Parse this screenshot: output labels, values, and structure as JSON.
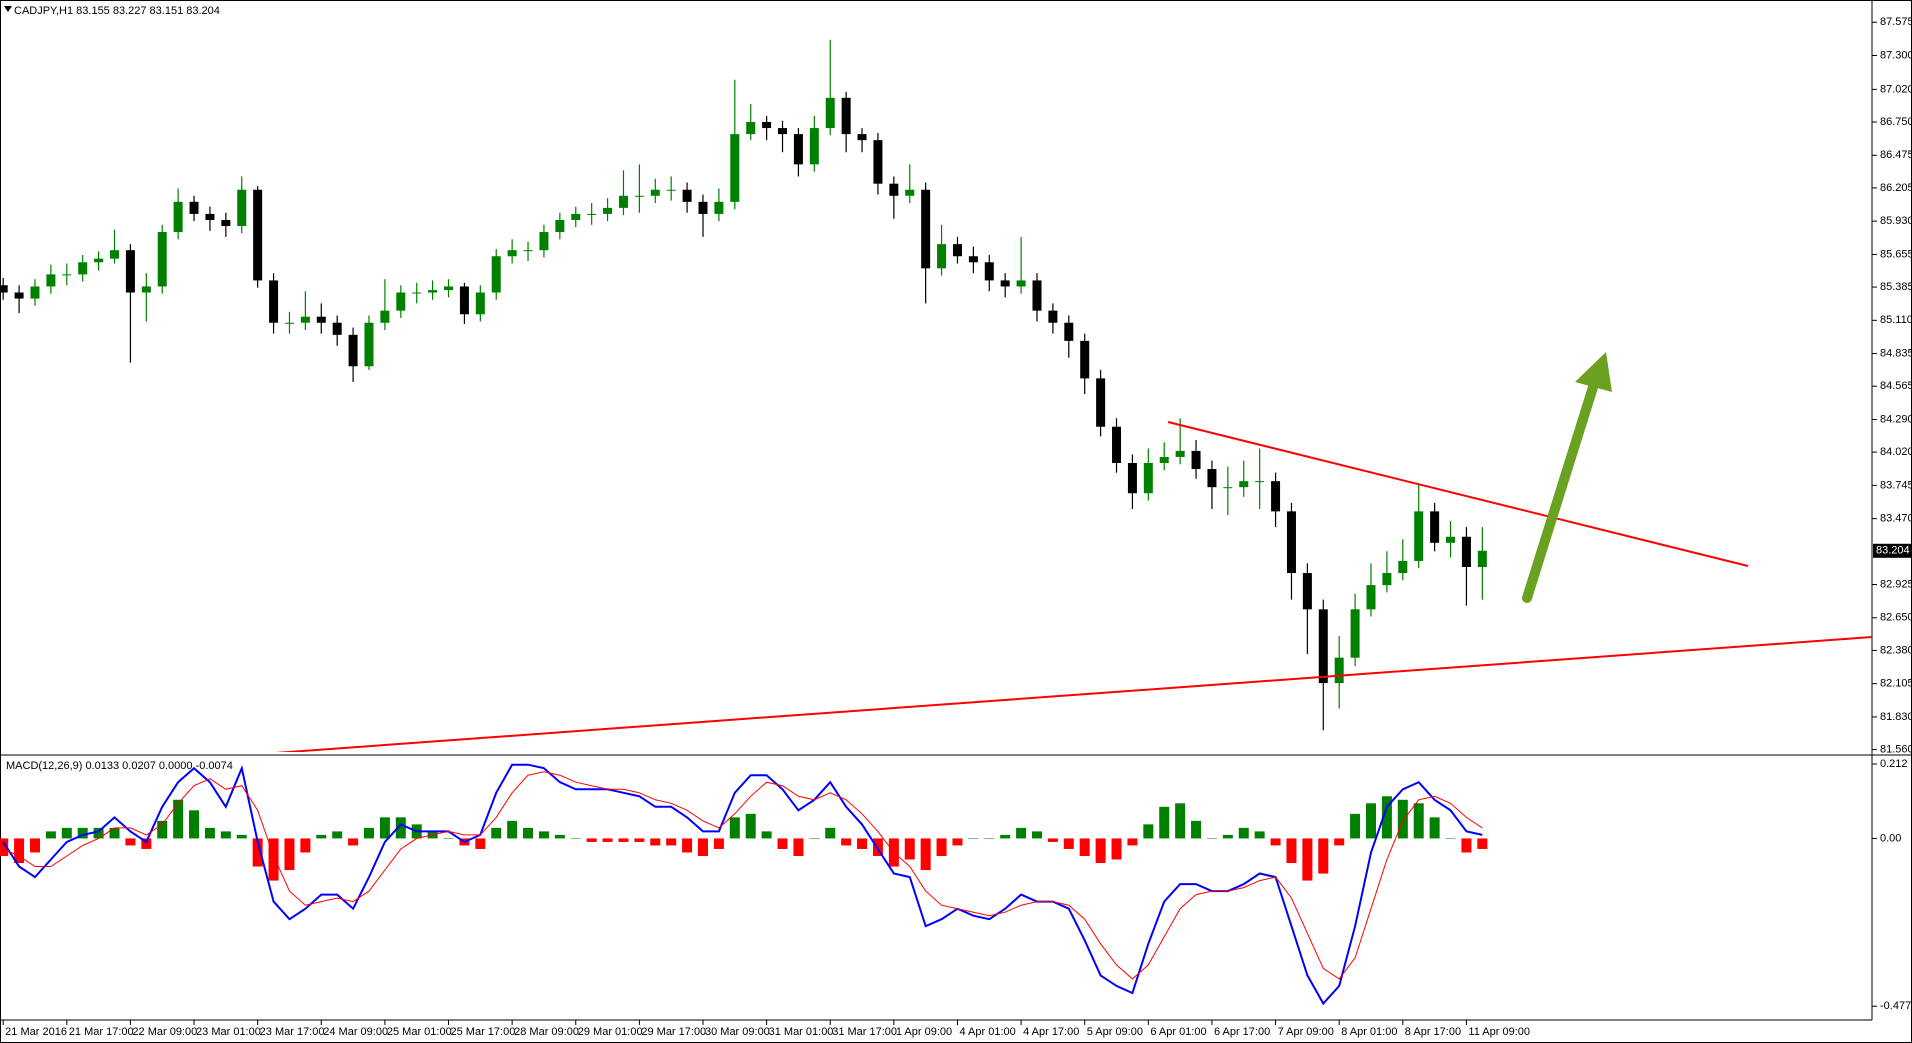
{
  "chart_data": [
    {
      "type": "candlestick",
      "title": "CADJPY,H1  83.155 83.227 83.151 83.204",
      "up_color": "#008000",
      "down_color": "#000000",
      "xlim": [
        -0.2,
        117.5
      ],
      "ylim": [
        81.54,
        87.726
      ],
      "yticks": [
        87.575,
        {
          "value": 87.3,
          "label": "87.300"
        },
        {
          "value": 87.02,
          "label": "87.020"
        },
        {
          "value": 86.75,
          "label": "86.750"
        },
        86.475,
        86.205,
        {
          "value": 85.93,
          "label": "85.930"
        },
        85.655,
        85.385,
        {
          "value": 85.11,
          "label": "85.110"
        },
        84.835,
        84.565,
        {
          "value": 84.29,
          "label": "84.290"
        },
        {
          "value": 84.02,
          "label": "84.020"
        },
        83.745,
        {
          "value": 83.47,
          "label": "83.470"
        },
        82.925,
        {
          "value": 82.65,
          "label": "82.650"
        },
        {
          "value": 82.38,
          "label": "82.380"
        },
        82.105,
        {
          "value": 81.83,
          "label": "81.830"
        },
        {
          "value": 81.56,
          "label": "81.560"
        }
      ],
      "last_price": 83.204,
      "candles": {
        "open": [
          85.4,
          85.34,
          85.29,
          85.39,
          85.49,
          85.49,
          85.59,
          85.62,
          85.69,
          85.34,
          85.39,
          85.84,
          86.09,
          85.99,
          85.94,
          85.89,
          86.19,
          85.44,
          85.09,
          85.09,
          85.14,
          85.09,
          84.99,
          84.73,
          85.09,
          85.19,
          85.34,
          85.34,
          85.36,
          85.39,
          85.16,
          85.34,
          85.64,
          85.69,
          85.69,
          85.84,
          85.94,
          85.99,
          85.99,
          86.04,
          86.14,
          86.14,
          86.19,
          86.19,
          86.09,
          85.99,
          86.09,
          86.65,
          86.75,
          86.7,
          86.65,
          86.4,
          86.7,
          86.95,
          86.65,
          86.6,
          86.24,
          86.14,
          86.19,
          85.54,
          85.74,
          85.64,
          85.59,
          85.44,
          85.39,
          85.44,
          85.19,
          85.09,
          84.94,
          84.63,
          84.23,
          83.93,
          83.68,
          83.93,
          83.98,
          84.03,
          83.88,
          83.73,
          83.73,
          83.78,
          83.78,
          83.53,
          83.02,
          82.72,
          82.11,
          82.32,
          82.72,
          82.92,
          83.02,
          83.12,
          83.53,
          83.27,
          83.32,
          83.07
        ],
        "high": [
          85.46,
          85.4,
          85.45,
          85.57,
          85.58,
          85.65,
          85.68,
          85.86,
          85.74,
          85.5,
          85.9,
          86.2,
          86.14,
          86.05,
          86.0,
          86.3,
          86.22,
          85.5,
          85.18,
          85.35,
          85.25,
          85.15,
          85.05,
          85.15,
          85.45,
          85.4,
          85.42,
          85.44,
          85.45,
          85.42,
          85.4,
          85.7,
          85.78,
          85.76,
          85.9,
          86.0,
          86.05,
          86.08,
          86.12,
          86.35,
          86.4,
          86.28,
          86.3,
          86.25,
          86.15,
          86.2,
          87.1,
          86.9,
          86.8,
          86.76,
          86.7,
          86.8,
          87.43,
          87.0,
          86.7,
          86.66,
          86.3,
          86.4,
          86.25,
          85.9,
          85.8,
          85.72,
          85.65,
          85.5,
          85.8,
          85.5,
          85.25,
          85.15,
          85.0,
          84.7,
          84.3,
          84.0,
          84.05,
          84.1,
          84.3,
          84.12,
          83.95,
          83.9,
          83.95,
          84.05,
          83.85,
          83.6,
          83.1,
          82.8,
          82.5,
          82.85,
          83.1,
          83.2,
          83.3,
          83.75,
          83.6,
          83.45,
          83.4,
          83.4
        ],
        "low": [
          85.28,
          85.17,
          85.23,
          85.33,
          85.4,
          85.43,
          85.52,
          85.58,
          84.76,
          85.1,
          85.33,
          85.78,
          85.93,
          85.85,
          85.8,
          85.83,
          85.38,
          85.0,
          85.0,
          85.03,
          85.0,
          84.9,
          84.6,
          84.7,
          85.03,
          85.13,
          85.25,
          85.28,
          85.3,
          85.08,
          85.1,
          85.28,
          85.58,
          85.6,
          85.63,
          85.78,
          85.88,
          85.9,
          85.93,
          85.98,
          86.0,
          86.08,
          86.1,
          86.0,
          85.8,
          85.93,
          86.03,
          86.6,
          86.6,
          86.5,
          86.3,
          86.34,
          86.64,
          86.5,
          86.5,
          86.15,
          85.95,
          86.08,
          85.25,
          85.48,
          85.58,
          85.5,
          85.35,
          85.3,
          85.33,
          85.1,
          85.0,
          84.8,
          84.5,
          84.15,
          83.85,
          83.55,
          83.62,
          83.87,
          83.92,
          83.8,
          83.55,
          83.5,
          83.65,
          83.55,
          83.4,
          82.8,
          82.35,
          81.72,
          81.9,
          82.25,
          82.66,
          82.86,
          82.96,
          83.06,
          83.2,
          83.15,
          82.75,
          82.8
        ],
        "close": [
          85.34,
          85.29,
          85.39,
          85.49,
          85.49,
          85.59,
          85.62,
          85.69,
          85.34,
          85.39,
          85.84,
          86.09,
          85.99,
          85.94,
          85.89,
          86.19,
          85.44,
          85.09,
          85.09,
          85.14,
          85.09,
          84.99,
          84.73,
          85.09,
          85.19,
          85.34,
          85.34,
          85.36,
          85.39,
          85.16,
          85.34,
          85.64,
          85.69,
          85.69,
          85.84,
          85.94,
          85.99,
          85.99,
          86.04,
          86.14,
          86.14,
          86.19,
          86.19,
          86.09,
          85.99,
          86.09,
          86.65,
          86.75,
          86.7,
          86.65,
          86.4,
          86.7,
          86.95,
          86.65,
          86.6,
          86.24,
          86.14,
          86.19,
          85.54,
          85.74,
          85.64,
          85.59,
          85.44,
          85.39,
          85.44,
          85.19,
          85.09,
          84.94,
          84.63,
          84.23,
          83.93,
          83.68,
          83.93,
          83.98,
          84.03,
          83.88,
          83.73,
          83.73,
          83.78,
          83.78,
          83.53,
          83.02,
          82.72,
          82.11,
          82.32,
          82.72,
          82.92,
          83.02,
          83.12,
          83.53,
          83.27,
          83.32,
          83.07,
          83.204
        ]
      }
    },
    {
      "type": "macd",
      "title": "MACD(12,26,9) 0.0133 0.0207 0.0000 -0.0074",
      "xlim": [
        -0.2,
        117.5
      ],
      "ylim": [
        -0.517,
        0.229
      ],
      "yticks": [
        0.212,
        {
          "value": 0,
          "label": "0.00"
        },
        -0.4778
      ],
      "xticks": [
        {
          "value": 0,
          "label": "21 Mar 2016"
        },
        {
          "value": 4,
          "label": "21 Mar 17:00"
        },
        {
          "value": 8,
          "label": "22 Mar 09:00"
        },
        {
          "value": 12,
          "label": "23 Mar 01:00"
        },
        {
          "value": 16,
          "label": "23 Mar 17:00"
        },
        {
          "value": 20,
          "label": "24 Mar 09:00"
        },
        {
          "value": 24,
          "label": "25 Mar 01:00"
        },
        {
          "value": 28,
          "label": "25 Mar 17:00"
        },
        {
          "value": 32,
          "label": "28 Mar 09:00"
        },
        {
          "value": 36,
          "label": "29 Mar 01:00"
        },
        {
          "value": 40,
          "label": "29 Mar 17:00"
        },
        {
          "value": 44,
          "label": "30 Mar 09:00"
        },
        {
          "value": 48,
          "label": "31 Mar 01:00"
        },
        {
          "value": 52,
          "label": "31 Mar 17:00"
        },
        {
          "value": 56,
          "label": "1 Apr 09:00"
        },
        {
          "value": 60,
          "label": "4 Apr 01:00"
        },
        {
          "value": 64,
          "label": "4 Apr 17:00"
        },
        {
          "value": 68,
          "label": "5 Apr 09:00"
        },
        {
          "value": 72,
          "label": "6 Apr 01:00"
        },
        {
          "value": 76,
          "label": "6 Apr 17:00"
        },
        {
          "value": 80,
          "label": "7 Apr 09:00"
        },
        {
          "value": 84,
          "label": "8 Apr 01:00"
        },
        {
          "value": 88,
          "label": "8 Apr 17:00"
        },
        {
          "value": 92,
          "label": "11 Apr 09:00"
        }
      ],
      "histogram": {
        "up_color": "#008000",
        "down_color": "#ff0000",
        "values": [
          -0.05,
          -0.07,
          -0.04,
          0.02,
          0.03,
          0.03,
          0.03,
          0.03,
          -0.02,
          -0.03,
          0.05,
          0.11,
          0.08,
          0.03,
          0.02,
          0.01,
          -0.08,
          -0.12,
          -0.09,
          -0.04,
          0.01,
          0.02,
          -0.02,
          0.03,
          0.06,
          0.06,
          0.04,
          0.02,
          0.0,
          -0.02,
          -0.03,
          0.03,
          0.05,
          0.03,
          0.02,
          0.01,
          0.0,
          -0.01,
          -0.01,
          -0.01,
          -0.01,
          -0.02,
          -0.02,
          -0.04,
          -0.05,
          -0.03,
          0.06,
          0.07,
          0.02,
          -0.03,
          -0.05,
          0.0,
          0.03,
          -0.02,
          -0.03,
          -0.05,
          -0.08,
          -0.06,
          -0.09,
          -0.05,
          -0.02,
          0.0,
          0.0,
          0.01,
          0.03,
          0.02,
          -0.01,
          -0.03,
          -0.05,
          -0.07,
          -0.06,
          -0.02,
          0.04,
          0.09,
          0.1,
          0.05,
          0.0,
          0.01,
          0.03,
          0.02,
          -0.02,
          -0.07,
          -0.12,
          -0.1,
          -0.02,
          0.07,
          0.1,
          0.12,
          0.11,
          0.1,
          0.06,
          0.0,
          -0.04,
          -0.03
        ]
      },
      "series": [
        {
          "color": "#0000ff",
          "values": [
            -0.01,
            -0.08,
            -0.11,
            -0.06,
            -0.01,
            0.01,
            0.02,
            0.06,
            0.02,
            -0.01,
            0.09,
            0.16,
            0.2,
            0.16,
            0.09,
            0.2,
            -0.01,
            -0.18,
            -0.23,
            -0.2,
            -0.16,
            -0.16,
            -0.2,
            -0.11,
            -0.01,
            0.04,
            0.02,
            0.02,
            0.02,
            -0.01,
            0.01,
            0.13,
            0.21,
            0.21,
            0.2,
            0.16,
            0.14,
            0.14,
            0.14,
            0.13,
            0.12,
            0.09,
            0.09,
            0.06,
            0.02,
            0.02,
            0.13,
            0.18,
            0.18,
            0.14,
            0.08,
            0.11,
            0.16,
            0.09,
            0.04,
            -0.03,
            -0.1,
            -0.11,
            -0.25,
            -0.23,
            -0.2,
            -0.22,
            -0.23,
            -0.2,
            -0.16,
            -0.18,
            -0.18,
            -0.2,
            -0.29,
            -0.39,
            -0.42,
            -0.44,
            -0.3,
            -0.18,
            -0.13,
            -0.13,
            -0.15,
            -0.15,
            -0.13,
            -0.1,
            -0.11,
            -0.25,
            -0.39,
            -0.47,
            -0.42,
            -0.25,
            -0.04,
            0.09,
            0.14,
            0.16,
            0.11,
            0.08,
            0.02,
            0.01
          ]
        },
        {
          "color": "#ff0000",
          "values": [
            -0.03,
            -0.05,
            -0.08,
            -0.08,
            -0.05,
            -0.02,
            0.0,
            0.03,
            0.03,
            0.01,
            0.04,
            0.1,
            0.15,
            0.17,
            0.14,
            0.15,
            0.08,
            -0.05,
            -0.15,
            -0.19,
            -0.18,
            -0.17,
            -0.18,
            -0.15,
            -0.09,
            -0.03,
            0.0,
            0.01,
            0.02,
            0.01,
            0.01,
            0.06,
            0.13,
            0.18,
            0.19,
            0.18,
            0.16,
            0.15,
            0.14,
            0.14,
            0.13,
            0.11,
            0.1,
            0.08,
            0.05,
            0.03,
            0.07,
            0.12,
            0.16,
            0.15,
            0.12,
            0.11,
            0.13,
            0.11,
            0.07,
            0.02,
            -0.04,
            -0.08,
            -0.15,
            -0.19,
            -0.2,
            -0.21,
            -0.22,
            -0.21,
            -0.19,
            -0.18,
            -0.18,
            -0.19,
            -0.23,
            -0.3,
            -0.36,
            -0.4,
            -0.36,
            -0.28,
            -0.2,
            -0.16,
            -0.15,
            -0.15,
            -0.14,
            -0.12,
            -0.11,
            -0.17,
            -0.27,
            -0.37,
            -0.4,
            -0.34,
            -0.2,
            -0.06,
            0.05,
            0.11,
            0.12,
            0.1,
            0.06,
            0.03
          ]
        }
      ]
    }
  ]
}
